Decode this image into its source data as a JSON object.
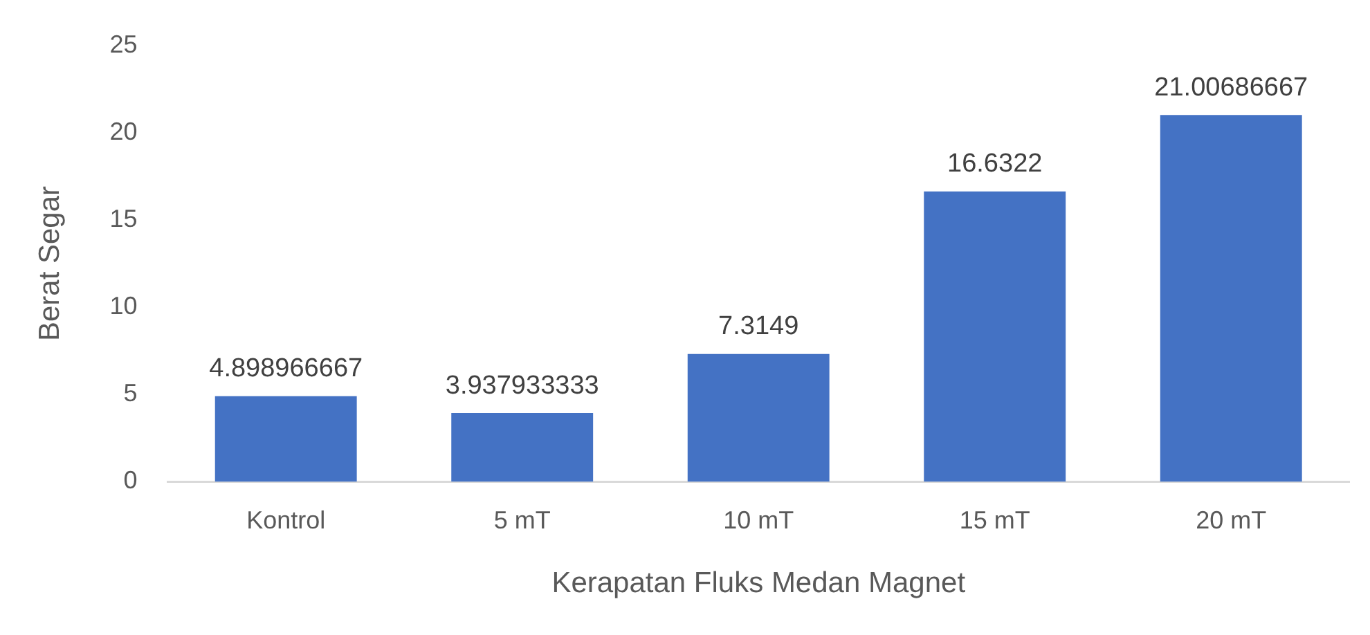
{
  "chart_data": {
    "type": "bar",
    "xlabel": "Kerapatan Fluks Medan Magnet",
    "ylabel": "Berat Segar",
    "categories": [
      "Kontrol",
      "5 mT",
      "10 mT",
      "15 mT",
      "20 mT"
    ],
    "values": [
      4.898966667,
      3.937933333,
      7.3149,
      16.6322,
      21.00686667
    ],
    "color": "#4472c4",
    "ylim": [
      0,
      25
    ],
    "yticks": [
      0,
      5,
      10,
      15,
      20,
      25
    ],
    "grid": false,
    "legend": false,
    "data_labels": true
  }
}
